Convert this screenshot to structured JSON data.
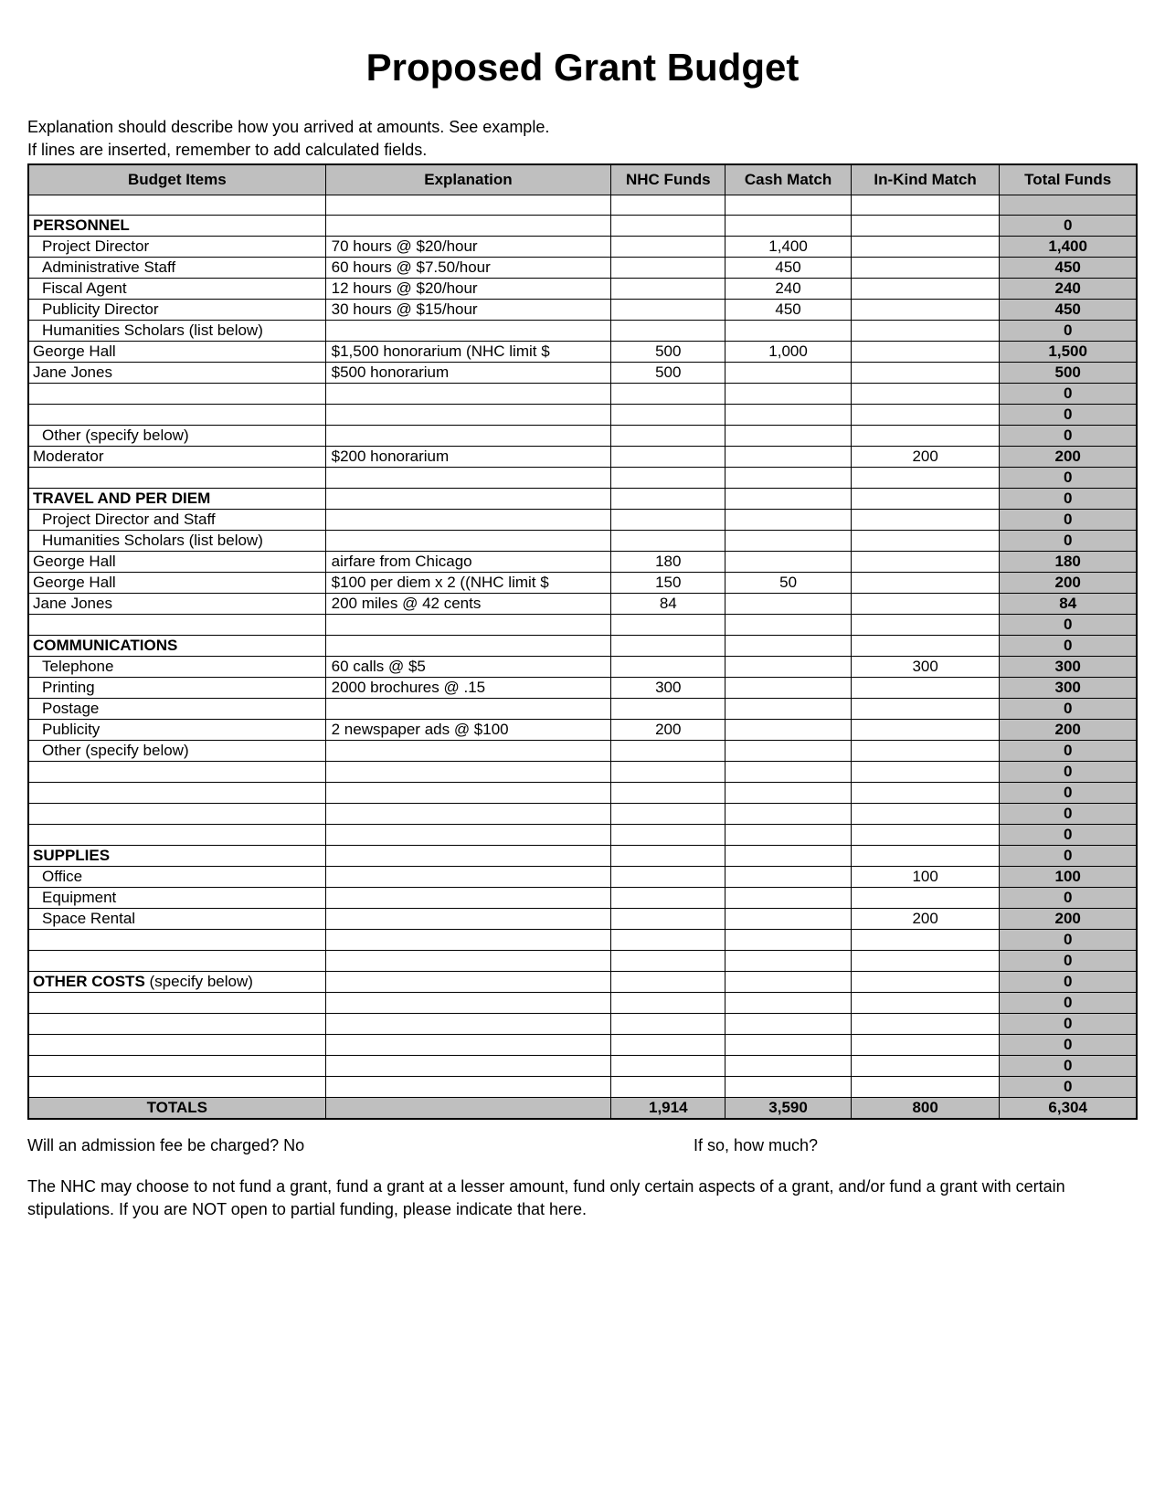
{
  "title": "Proposed Grant Budget",
  "intro_line1": "Explanation should describe how you arrived at amounts.  See example.",
  "intro_line2": "If lines are inserted, remember to add calculated fields.",
  "columns": {
    "items": "Budget Items",
    "explanation": "Explanation",
    "nhc": "NHC Funds",
    "cash": "Cash Match",
    "kind": "In-Kind Match",
    "total": "Total Funds"
  },
  "rows": [
    {
      "item": "",
      "exp": "",
      "nhc": "",
      "cash": "",
      "kind": "",
      "total": "",
      "shade_total": true
    },
    {
      "item": "PERSONNEL",
      "bold": true,
      "exp": "",
      "nhc": "",
      "cash": "",
      "kind": "",
      "total": "0",
      "shade_total": true
    },
    {
      "item": "Project Director",
      "indent": true,
      "exp": "70 hours @ $20/hour",
      "nhc": "",
      "cash": "1,400",
      "kind": "",
      "total": "1,400",
      "shade_total": true
    },
    {
      "item": "Administrative Staff",
      "indent": true,
      "exp": "60 hours @ $7.50/hour",
      "nhc": "",
      "cash": "450",
      "kind": "",
      "total": "450",
      "shade_total": true
    },
    {
      "item": "Fiscal Agent",
      "indent": true,
      "exp": "12 hours @ $20/hour",
      "nhc": "",
      "cash": "240",
      "kind": "",
      "total": "240",
      "shade_total": true
    },
    {
      "item": "Publicity Director",
      "indent": true,
      "exp": "30 hours @ $15/hour",
      "nhc": "",
      "cash": "450",
      "kind": "",
      "total": "450",
      "shade_total": true
    },
    {
      "item": "Humanities Scholars (list below)",
      "indent": true,
      "exp": "",
      "nhc": "",
      "cash": "",
      "kind": "",
      "total": "0",
      "shade_total": true
    },
    {
      "item": "George Hall",
      "exp": "$1,500 honorarium (NHC limit $",
      "nhc": "500",
      "cash": "1,000",
      "kind": "",
      "total": "1,500",
      "shade_total": true
    },
    {
      "item": "Jane Jones",
      "exp": "$500 honorarium",
      "nhc": "500",
      "cash": "",
      "kind": "",
      "total": "500",
      "shade_total": true
    },
    {
      "item": "",
      "exp": "",
      "nhc": "",
      "cash": "",
      "kind": "",
      "total": "0",
      "shade_total": true
    },
    {
      "item": "",
      "exp": "",
      "nhc": "",
      "cash": "",
      "kind": "",
      "total": "0",
      "shade_total": true
    },
    {
      "item": "Other (specify below)",
      "indent": true,
      "exp": "",
      "nhc": "",
      "cash": "",
      "kind": "",
      "total": "0",
      "shade_total": true
    },
    {
      "item": "Moderator",
      "exp": "$200 honorarium",
      "nhc": "",
      "cash": "",
      "kind": "200",
      "total": "200",
      "shade_total": true
    },
    {
      "item": "",
      "exp": "",
      "nhc": "",
      "cash": "",
      "kind": "",
      "total": "0",
      "shade_total": true
    },
    {
      "item": "TRAVEL AND PER DIEM",
      "bold": true,
      "exp": "",
      "nhc": "",
      "cash": "",
      "kind": "",
      "total": "0",
      "shade_total": true
    },
    {
      "item": "Project Director and Staff",
      "indent": true,
      "exp": "",
      "nhc": "",
      "cash": "",
      "kind": "",
      "total": "0",
      "shade_total": true
    },
    {
      "item": "Humanities Scholars (list below)",
      "indent": true,
      "exp": "",
      "nhc": "",
      "cash": "",
      "kind": "",
      "total": "0",
      "shade_total": true
    },
    {
      "item": "George Hall",
      "exp": "airfare from Chicago",
      "nhc": "180",
      "cash": "",
      "kind": "",
      "total": "180",
      "shade_total": true
    },
    {
      "item": "George Hall",
      "exp": "$100 per diem x 2 ((NHC limit $",
      "nhc": "150",
      "cash": "50",
      "kind": "",
      "total": "200",
      "shade_total": true
    },
    {
      "item": "Jane Jones",
      "exp": "200 miles @ 42 cents",
      "nhc": "84",
      "cash": "",
      "kind": "",
      "total": "84",
      "shade_total": true
    },
    {
      "item": "",
      "exp": "",
      "nhc": "",
      "cash": "",
      "kind": "",
      "total": "0",
      "shade_total": true
    },
    {
      "item": "COMMUNICATIONS",
      "bold": true,
      "exp": "",
      "nhc": "",
      "cash": "",
      "kind": "",
      "total": "0",
      "shade_total": true
    },
    {
      "item": "Telephone",
      "indent": true,
      "exp": "60 calls @ $5",
      "nhc": "",
      "cash": "",
      "kind": "300",
      "total": "300",
      "shade_total": true
    },
    {
      "item": "Printing",
      "indent": true,
      "exp": "2000 brochures @ .15",
      "nhc": "300",
      "cash": "",
      "kind": "",
      "total": "300",
      "shade_total": true
    },
    {
      "item": "Postage",
      "indent": true,
      "exp": "",
      "nhc": "",
      "cash": "",
      "kind": "",
      "total": "0",
      "shade_total": true
    },
    {
      "item": "Publicity",
      "indent": true,
      "exp": "2 newspaper ads @ $100",
      "nhc": "200",
      "cash": "",
      "kind": "",
      "total": "200",
      "shade_total": true
    },
    {
      "item": "Other (specify below)",
      "indent": true,
      "exp": "",
      "nhc": "",
      "cash": "",
      "kind": "",
      "total": "0",
      "shade_total": true
    },
    {
      "item": "",
      "exp": "",
      "nhc": "",
      "cash": "",
      "kind": "",
      "total": "0",
      "shade_total": true
    },
    {
      "item": "",
      "exp": "",
      "nhc": "",
      "cash": "",
      "kind": "",
      "total": "0",
      "shade_total": true
    },
    {
      "item": "",
      "exp": "",
      "nhc": "",
      "cash": "",
      "kind": "",
      "total": "0",
      "shade_total": true
    },
    {
      "item": "",
      "exp": "",
      "nhc": "",
      "cash": "",
      "kind": "",
      "total": "0",
      "shade_total": true
    },
    {
      "item": "SUPPLIES",
      "bold": true,
      "exp": "",
      "nhc": "",
      "cash": "",
      "kind": "",
      "total": "0",
      "shade_total": true
    },
    {
      "item": "Office",
      "indent": true,
      "exp": "",
      "nhc": "",
      "cash": "",
      "kind": "100",
      "total": "100",
      "shade_total": true
    },
    {
      "item": "Equipment",
      "indent": true,
      "exp": "",
      "nhc": "",
      "cash": "",
      "kind": "",
      "total": "0",
      "shade_total": true
    },
    {
      "item": "Space Rental",
      "indent": true,
      "exp": "",
      "nhc": "",
      "cash": "",
      "kind": "200",
      "total": "200",
      "shade_total": true
    },
    {
      "item": "",
      "exp": "",
      "nhc": "",
      "cash": "",
      "kind": "",
      "total": "0",
      "shade_total": true
    },
    {
      "item": "",
      "exp": "",
      "nhc": "",
      "cash": "",
      "kind": "",
      "total": "0",
      "shade_total": true
    },
    {
      "item": "OTHER COSTS (specify below)",
      "bold_partial": "OTHER COSTS",
      "rest": " (specify below)",
      "exp": "",
      "nhc": "",
      "cash": "",
      "kind": "",
      "total": "0",
      "shade_total": true
    },
    {
      "item": "",
      "exp": "",
      "nhc": "",
      "cash": "",
      "kind": "",
      "total": "0",
      "shade_total": true
    },
    {
      "item": "",
      "exp": "",
      "nhc": "",
      "cash": "",
      "kind": "",
      "total": "0",
      "shade_total": true
    },
    {
      "item": "",
      "exp": "",
      "nhc": "",
      "cash": "",
      "kind": "",
      "total": "0",
      "shade_total": true
    },
    {
      "item": "",
      "exp": "",
      "nhc": "",
      "cash": "",
      "kind": "",
      "total": "0",
      "shade_total": true
    },
    {
      "item": "",
      "exp": "",
      "nhc": "",
      "cash": "",
      "kind": "",
      "total": "0",
      "shade_total": true
    }
  ],
  "totals": {
    "label": "TOTALS",
    "nhc": "1,914",
    "cash": "3,590",
    "kind": "800",
    "total": "6,304"
  },
  "footer": {
    "q1": "Will an admission fee be charged?   No",
    "q2": "If so, how much?",
    "disclaimer": "The NHC may choose to not fund a grant, fund a grant at a lesser amount, fund only certain aspects of a grant, and/or fund a grant with certain stipulations.  If you are NOT open to partial funding, please indicate that here."
  },
  "style": {
    "header_bg": "#bfbfbf",
    "border_color": "#000000",
    "page_bg": "#ffffff",
    "title_fontsize": 42,
    "body_fontsize": 18,
    "table_fontsize": 17
  }
}
